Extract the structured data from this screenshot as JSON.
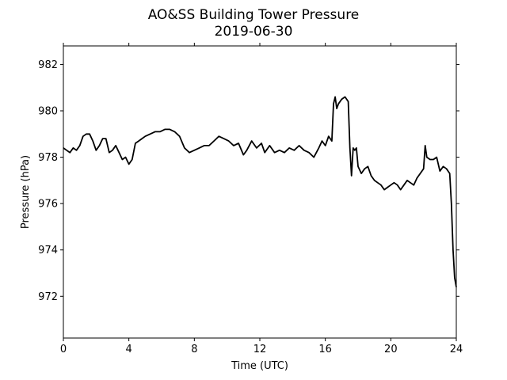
{
  "chart_data": {
    "type": "line",
    "title": "AO&SS Building Tower Pressure",
    "subtitle": "2019-06-30",
    "xlabel": "Time (UTC)",
    "ylabel": "Pressure (hPa)",
    "xlim": [
      0,
      24
    ],
    "ylim": [
      970.2,
      982.8
    ],
    "xticks": [
      0,
      4,
      8,
      12,
      16,
      20,
      24
    ],
    "yticks": [
      972,
      974,
      976,
      978,
      980,
      982
    ],
    "grid": false,
    "line_color": "#000000",
    "series": [
      {
        "x": [
          0.0,
          0.2,
          0.4,
          0.6,
          0.8,
          1.0,
          1.2,
          1.4,
          1.6,
          1.8,
          2.0,
          2.2,
          2.4,
          2.6,
          2.8,
          3.0,
          3.2,
          3.4,
          3.6,
          3.8,
          4.0,
          4.2,
          4.4,
          4.6,
          4.8,
          5.0,
          5.3,
          5.6,
          5.9,
          6.2,
          6.5,
          6.8,
          7.1,
          7.4,
          7.7,
          8.0,
          8.3,
          8.6,
          8.9,
          9.2,
          9.5,
          9.8,
          10.1,
          10.4,
          10.7,
          11.0,
          11.2,
          11.5,
          11.8,
          12.1,
          12.3,
          12.6,
          12.9,
          13.2,
          13.5,
          13.8,
          14.1,
          14.4,
          14.7,
          15.0,
          15.3,
          15.6,
          15.8,
          16.0,
          16.2,
          16.4,
          16.5,
          16.6,
          16.7,
          16.8,
          17.0,
          17.2,
          17.4,
          17.5,
          17.6,
          17.7,
          17.8,
          17.9,
          18.0,
          18.2,
          18.4,
          18.6,
          18.8,
          19.0,
          19.2,
          19.4,
          19.6,
          19.8,
          20.0,
          20.2,
          20.4,
          20.6,
          20.8,
          21.0,
          21.2,
          21.4,
          21.6,
          21.8,
          22.0,
          22.1,
          22.2,
          22.4,
          22.6,
          22.8,
          23.0,
          23.2,
          23.4,
          23.6,
          23.7,
          23.8,
          23.9,
          24.0
        ],
        "y": [
          978.4,
          978.3,
          978.2,
          978.4,
          978.3,
          978.5,
          978.9,
          979.0,
          979.0,
          978.7,
          978.3,
          978.5,
          978.8,
          978.8,
          978.2,
          978.3,
          978.5,
          978.2,
          977.9,
          978.0,
          977.7,
          977.9,
          978.6,
          978.7,
          978.8,
          978.9,
          979.0,
          979.1,
          979.1,
          979.2,
          979.2,
          979.1,
          978.9,
          978.4,
          978.2,
          978.3,
          978.4,
          978.5,
          978.5,
          978.7,
          978.9,
          978.8,
          978.7,
          978.5,
          978.6,
          978.1,
          978.3,
          978.7,
          978.4,
          978.6,
          978.2,
          978.5,
          978.2,
          978.3,
          978.2,
          978.4,
          978.3,
          978.5,
          978.3,
          978.2,
          978.0,
          978.4,
          978.7,
          978.5,
          978.9,
          978.7,
          980.3,
          980.6,
          980.1,
          980.3,
          980.5,
          980.6,
          980.4,
          978.4,
          977.2,
          978.4,
          978.3,
          978.4,
          977.6,
          977.3,
          977.5,
          977.6,
          977.2,
          977.0,
          976.9,
          976.8,
          976.6,
          976.7,
          976.8,
          976.9,
          976.8,
          976.6,
          976.8,
          977.0,
          976.9,
          976.8,
          977.1,
          977.3,
          977.5,
          978.5,
          978.0,
          977.9,
          977.9,
          978.0,
          977.4,
          977.6,
          977.5,
          977.3,
          976.0,
          974.0,
          972.8,
          972.4
        ]
      }
    ]
  }
}
